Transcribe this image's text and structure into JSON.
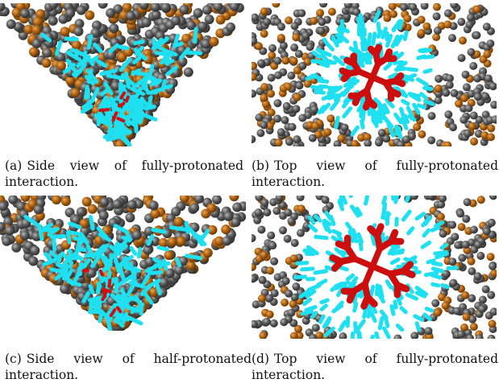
{
  "panels": [
    {
      "caption": {
        "label": "(a)",
        "text": "Side view of fully-protonated interaction."
      }
    },
    {
      "caption": {
        "label": "(b)",
        "text": "Top view of fully-protonated interaction."
      }
    },
    {
      "caption": {
        "label": "(c)",
        "text": "Side view of half-protonated interaction."
      }
    },
    {
      "caption": {
        "label": "(d)",
        "text": "Top view of fully-protonated interaction."
      }
    }
  ]
}
